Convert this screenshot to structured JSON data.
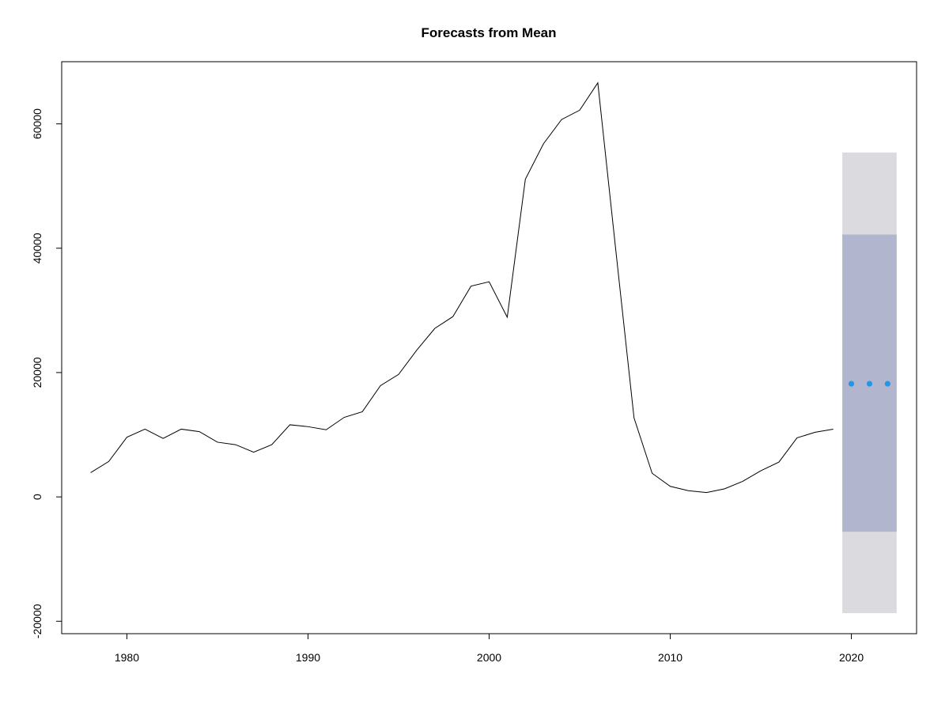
{
  "chart_data": {
    "type": "line",
    "title": "Forecasts from Mean",
    "xlabel": "",
    "ylabel": "",
    "xlim": [
      1976.4,
      2023.6
    ],
    "ylim": [
      -22000,
      70000
    ],
    "x_ticks": [
      1980,
      1990,
      2000,
      2010,
      2020
    ],
    "y_ticks": [
      -20000,
      0,
      20000,
      40000,
      60000
    ],
    "grid": false,
    "series": [
      {
        "x": [
          1978,
          1979,
          1980,
          1981,
          1982,
          1983,
          1984,
          1985,
          1986,
          1987,
          1988,
          1989,
          1990,
          1991,
          1992,
          1993,
          1994,
          1995,
          1996,
          1997,
          1998,
          1999,
          2000,
          2001,
          2002,
          2003,
          2004,
          2005,
          2006,
          2007,
          2008,
          2009,
          2010,
          2011,
          2012,
          2013,
          2014,
          2015,
          2016,
          2017,
          2018,
          2019
        ],
        "values": [
          3900,
          5700,
          9600,
          10900,
          9400,
          10900,
          10500,
          8800,
          8400,
          7200,
          8400,
          11600,
          11300,
          10800,
          12800,
          13700,
          17900,
          19700,
          23600,
          27100,
          29000,
          33900,
          34600,
          28900,
          51100,
          56800,
          60700,
          62200,
          66600,
          39500,
          12700,
          3800,
          1700,
          1000,
          700,
          1300,
          2500,
          4200,
          5600,
          9500,
          10400,
          10900
        ],
        "color": "#000000"
      }
    ],
    "forecast": {
      "x": [
        2020,
        2021,
        2022
      ],
      "mean": [
        18200,
        18200,
        18200
      ],
      "lower80": [
        -5600,
        -5600,
        -5600
      ],
      "upper80": [
        42200,
        42200,
        42200
      ],
      "lower95": [
        -18700,
        -18700,
        -18700
      ],
      "upper95": [
        55400,
        55400,
        55400
      ],
      "band_x_range": [
        2019.5,
        2022.5
      ],
      "point_color": "#2297E6",
      "band80_color": "#B1B5CE",
      "band95_color": "#DBDBDF"
    }
  }
}
